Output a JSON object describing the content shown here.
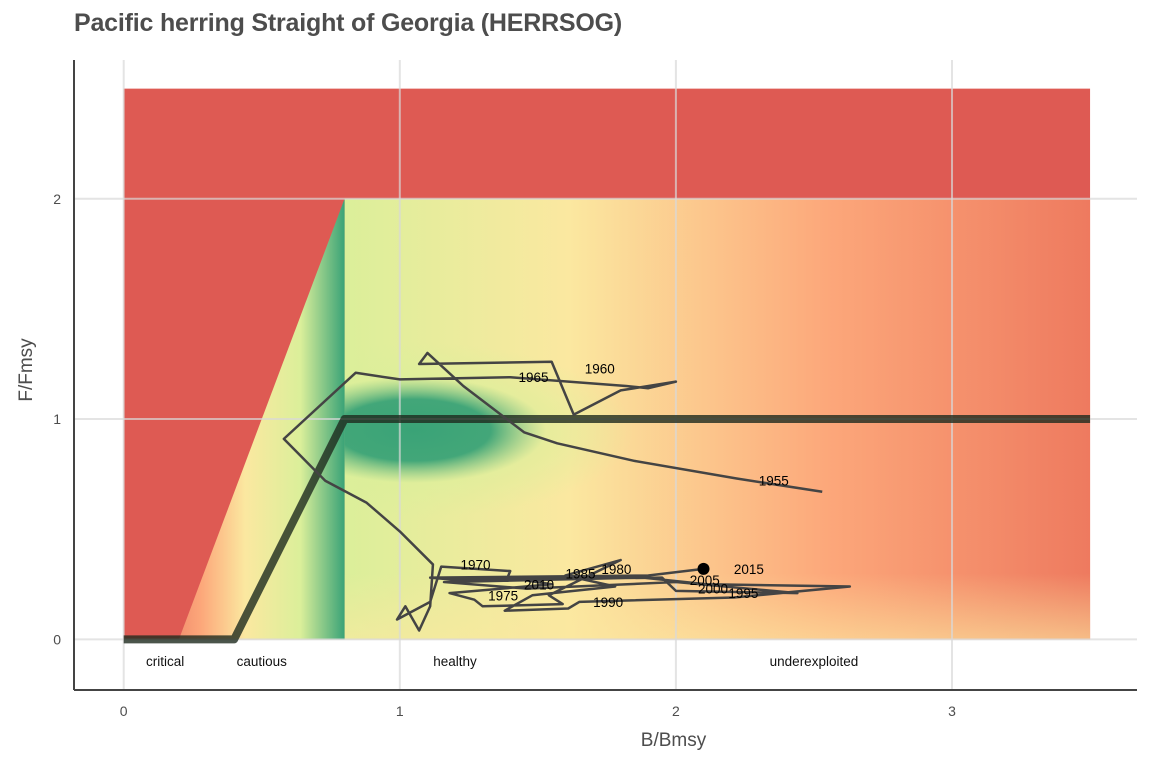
{
  "chart_data": {
    "type": "line",
    "title": "Pacific herring Straight of Georgia (HERRSOG)",
    "xlabel": "B/Bmsy",
    "ylabel": "F/Fmsy",
    "xlim": [
      -0.18,
      3.67
    ],
    "ylim": [
      -0.23,
      2.63
    ],
    "x_ticks": [
      0,
      1,
      2,
      3
    ],
    "y_ticks": [
      0,
      1,
      2
    ],
    "grid": true,
    "background_colors": {
      "red": "#de5a53",
      "orange": "#fca77a",
      "yellow": "#fbe8a0",
      "lime": "#dbef9a",
      "green": "#3aa377"
    },
    "reference_line": {
      "name": "",
      "color": "#1e2a1e",
      "points": [
        [
          0,
          0
        ],
        [
          0.4,
          0
        ],
        [
          0.8,
          1
        ],
        [
          3.5,
          1
        ]
      ]
    },
    "zone_labels": [
      {
        "text": "critical",
        "x": 0.15
      },
      {
        "text": "cautious",
        "x": 0.5
      },
      {
        "text": "healthy",
        "x": 1.2
      },
      {
        "text": "underexploited",
        "x": 2.5
      }
    ],
    "series": [
      {
        "color": "#444444",
        "points": [
          [
            2.53,
            0.67
          ],
          [
            2.22,
            0.73
          ],
          [
            1.85,
            0.81
          ],
          [
            1.57,
            0.89
          ],
          [
            1.45,
            0.94
          ],
          [
            1.23,
            1.15
          ],
          [
            1.1,
            1.3
          ],
          [
            1.07,
            1.25
          ],
          [
            1.55,
            1.26
          ],
          [
            1.57,
            1.2
          ],
          [
            1.63,
            1.02
          ],
          [
            1.8,
            1.13
          ],
          [
            2.0,
            1.17
          ],
          [
            1.9,
            1.14
          ],
          [
            1.82,
            1.15
          ],
          [
            1.4,
            1.19
          ],
          [
            1.0,
            1.18
          ],
          [
            0.84,
            1.21
          ],
          [
            0.58,
            0.91
          ],
          [
            0.73,
            0.72
          ],
          [
            0.88,
            0.62
          ],
          [
            1.0,
            0.49
          ],
          [
            1.12,
            0.34
          ],
          [
            1.11,
            0.15
          ],
          [
            1.07,
            0.04
          ],
          [
            1.02,
            0.15
          ],
          [
            0.99,
            0.09
          ],
          [
            1.11,
            0.17
          ],
          [
            1.15,
            0.33
          ],
          [
            1.4,
            0.31
          ],
          [
            1.39,
            0.28
          ],
          [
            1.55,
            0.25
          ],
          [
            1.18,
            0.21
          ],
          [
            1.27,
            0.18
          ],
          [
            1.3,
            0.15
          ],
          [
            1.59,
            0.16
          ],
          [
            1.54,
            0.2
          ],
          [
            1.8,
            0.36
          ],
          [
            1.6,
            0.29
          ],
          [
            1.78,
            0.24
          ],
          [
            1.48,
            0.2
          ],
          [
            1.38,
            0.13
          ],
          [
            1.61,
            0.14
          ],
          [
            1.65,
            0.17
          ],
          [
            2.21,
            0.19
          ],
          [
            2.63,
            0.24
          ],
          [
            2.11,
            0.25
          ],
          [
            1.88,
            0.28
          ],
          [
            1.16,
            0.26
          ],
          [
            1.46,
            0.23
          ],
          [
            2.0,
            0.26
          ],
          [
            2.44,
            0.21
          ],
          [
            2.0,
            0.22
          ],
          [
            1.95,
            0.28
          ],
          [
            1.2,
            0.27
          ],
          [
            1.11,
            0.28
          ],
          [
            1.9,
            0.29
          ],
          [
            2.1,
            0.32
          ]
        ]
      }
    ],
    "year_labels": [
      {
        "year": "1955",
        "x": 2.3,
        "y": 0.72
      },
      {
        "year": "1960",
        "x": 1.67,
        "y": 1.23
      },
      {
        "year": "1965",
        "x": 1.43,
        "y": 1.19
      },
      {
        "year": "1970",
        "x": 1.22,
        "y": 0.34
      },
      {
        "year": "1975",
        "x": 1.32,
        "y": 0.2
      },
      {
        "year": "1980",
        "x": 1.73,
        "y": 0.32
      },
      {
        "year": "1985",
        "x": 1.6,
        "y": 0.3
      },
      {
        "year": "1990",
        "x": 1.7,
        "y": 0.17
      },
      {
        "year": "1995",
        "x": 2.19,
        "y": 0.21
      },
      {
        "year": "2000",
        "x": 2.08,
        "y": 0.23
      },
      {
        "year": "2005",
        "x": 2.05,
        "y": 0.27
      },
      {
        "year": "2010",
        "x": 1.45,
        "y": 0.25
      },
      {
        "year": "2015",
        "x": 2.21,
        "y": 0.32
      }
    ],
    "current_point": {
      "x": 2.1,
      "y": 0.32
    }
  }
}
